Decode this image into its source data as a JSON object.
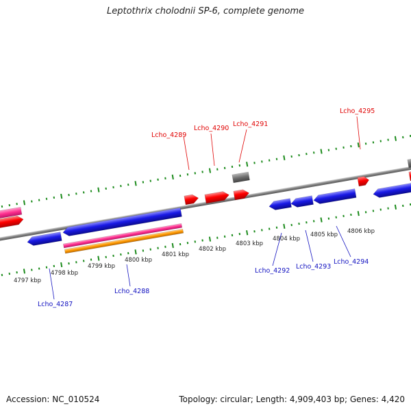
{
  "title": "Leptothrix cholodnii SP-6, complete genome",
  "footer": {
    "accession": "Accession: NC_010524",
    "summary": "Topology: circular; Length: 4,909,403 bp; Genes: 4,420"
  },
  "colors": {
    "forward_gene": "#ff0000",
    "reverse_gene": "#1010e0",
    "pink_feature": "#ff2f8f",
    "orange_feature": "#ff9a00",
    "grey_feature": "#777777",
    "backbone": "#8a8a8a",
    "tick": "#1a8a1a",
    "forward_label": "#e00000",
    "reverse_label": "#1010c0"
  },
  "kbp_labels": [
    "4797 kbp",
    "4798 kbp",
    "4799 kbp",
    "4800 kbp",
    "4801 kbp",
    "4802 kbp",
    "4803 kbp",
    "4804 kbp",
    "4805 kbp",
    "4806 kbp"
  ],
  "forward_genes": [
    "Lcho_4289",
    "Lcho_4290",
    "Lcho_4291",
    "Lcho_4295"
  ],
  "reverse_genes": [
    "Lcho_4287",
    "Lcho_4288",
    "Lcho_4292",
    "Lcho_4293",
    "Lcho_4294"
  ]
}
